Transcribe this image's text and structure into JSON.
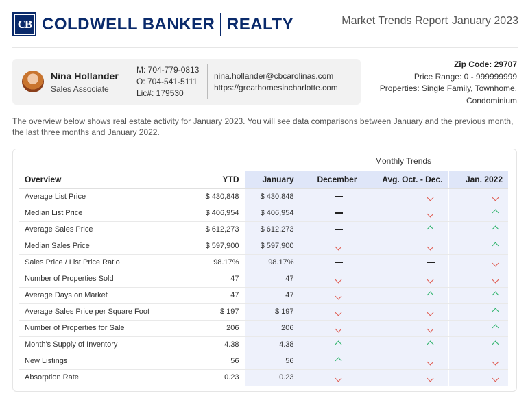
{
  "brand": {
    "badge": "CB",
    "name": "COLDWELL BANKER",
    "name2": "REALTY",
    "color": "#0a2a6b"
  },
  "report": {
    "title": "Market Trends Report",
    "period": "January 2023"
  },
  "agent": {
    "name": "Nina Hollander",
    "title": "Sales Associate",
    "mobile": "M: 704-779-0813",
    "office": "O: 704-541-5111",
    "license": "Lic#: 179530",
    "email": "nina.hollander@cbcarolinas.com",
    "website": "https://greathomesincharlotte.com"
  },
  "criteria": {
    "zip": "Zip Code: 29707",
    "price_range": "Price Range: 0 - 999999999",
    "properties_line1": "Properties: Single Family, Townhome,",
    "properties_line2": "Condominium"
  },
  "intro": "The overview below shows real estate activity for January 2023. You will see data comparisons between January and the previous month, the last three months and January 2022.",
  "table": {
    "group_header": "Monthly Trends",
    "headers": {
      "overview": "Overview",
      "ytd": "YTD",
      "jan": "January",
      "dec": "December",
      "avg": "Avg. Oct. - Dec.",
      "j22": "Jan. 2022"
    },
    "rows": [
      {
        "label": "Average List Price",
        "ytd": "$ 430,848",
        "jan": "$ 430,848",
        "dec": "flat",
        "avg": "down",
        "j22": "down"
      },
      {
        "label": "Median List Price",
        "ytd": "$ 406,954",
        "jan": "$ 406,954",
        "dec": "flat",
        "avg": "down",
        "j22": "up"
      },
      {
        "label": "Average Sales Price",
        "ytd": "$ 612,273",
        "jan": "$ 612,273",
        "dec": "flat",
        "avg": "up",
        "j22": "up"
      },
      {
        "label": "Median Sales Price",
        "ytd": "$ 597,900",
        "jan": "$ 597,900",
        "dec": "down",
        "avg": "down",
        "j22": "up"
      },
      {
        "label": "Sales Price / List Price Ratio",
        "ytd": "98.17%",
        "jan": "98.17%",
        "dec": "flat",
        "avg": "flat",
        "j22": "down"
      },
      {
        "label": "Number of Properties Sold",
        "ytd": "47",
        "jan": "47",
        "dec": "down",
        "avg": "down",
        "j22": "down"
      },
      {
        "label": "Average Days on Market",
        "ytd": "47",
        "jan": "47",
        "dec": "down",
        "avg": "up",
        "j22": "up"
      },
      {
        "label": "Average Sales Price per Square Foot",
        "ytd": "$ 197",
        "jan": "$ 197",
        "dec": "down",
        "avg": "down",
        "j22": "up"
      },
      {
        "label": "Number of Properties for Sale",
        "ytd": "206",
        "jan": "206",
        "dec": "down",
        "avg": "down",
        "j22": "up"
      },
      {
        "label": "Month's Supply of Inventory",
        "ytd": "4.38",
        "jan": "4.38",
        "dec": "up",
        "avg": "up",
        "j22": "up"
      },
      {
        "label": "New Listings",
        "ytd": "56",
        "jan": "56",
        "dec": "up",
        "avg": "down",
        "j22": "down"
      },
      {
        "label": "Absorption Rate",
        "ytd": "0.23",
        "jan": "0.23",
        "dec": "down",
        "avg": "down",
        "j22": "down"
      }
    ]
  },
  "colors": {
    "up": "#2db36a",
    "down": "#e05a4f",
    "highlight": "#eef1fb"
  }
}
